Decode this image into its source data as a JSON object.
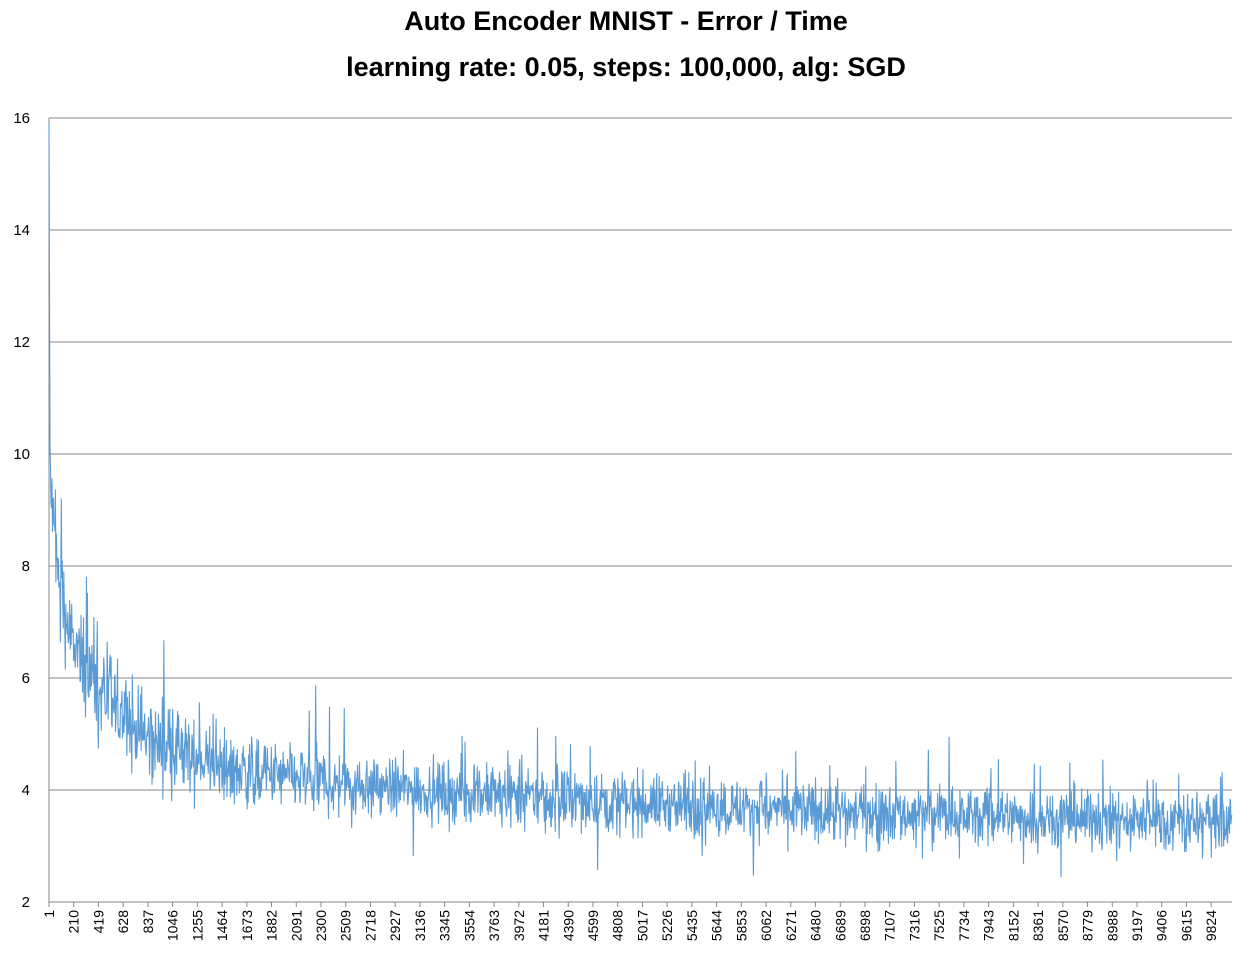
{
  "chart_data": {
    "type": "line",
    "title": "Auto Encoder MNIST - Error / Time",
    "subtitle": "learning rate: 0.05, steps: 100,000, alg: SGD",
    "xlabel": "",
    "ylabel": "",
    "ylim": [
      2,
      16
    ],
    "y_ticks": [
      2,
      4,
      6,
      8,
      10,
      12,
      14,
      16
    ],
    "x_range": [
      1,
      10000
    ],
    "x_ticks": [
      1,
      210,
      419,
      628,
      837,
      1046,
      1255,
      1464,
      1673,
      1882,
      2091,
      2300,
      2509,
      2718,
      2927,
      3136,
      3345,
      3554,
      3763,
      3972,
      4181,
      4390,
      4599,
      4808,
      5017,
      5226,
      5435,
      5644,
      5853,
      6062,
      6271,
      6480,
      6689,
      6898,
      7107,
      7316,
      7525,
      7734,
      7943,
      8152,
      8361,
      8570,
      8779,
      8988,
      9197,
      9406,
      9615,
      9824
    ],
    "grid": {
      "horizontal": true,
      "vertical": false
    },
    "legend": "none",
    "series": [
      {
        "color": "#5b9bd5",
        "x": [
          1,
          10,
          30,
          60,
          100,
          150,
          210,
          300,
          419,
          520,
          628,
          730,
          837,
          940,
          1046,
          1150,
          1255,
          1360,
          1464,
          1570,
          1673,
          1780,
          1882,
          2091,
          2300,
          2509,
          2718,
          2927,
          3136,
          3345,
          3554,
          3763,
          3972,
          4181,
          4390,
          4599,
          4808,
          5017,
          5226,
          5435,
          5644,
          5853,
          6062,
          6271,
          6480,
          6689,
          6898,
          7107,
          7316,
          7525,
          7734,
          7943,
          8152,
          8361,
          8570,
          8779,
          8988,
          9197,
          9406,
          9615,
          9824,
          10000
        ],
        "trend": [
          15.9,
          9.6,
          8.9,
          8.2,
          7.6,
          7.0,
          6.55,
          6.15,
          5.85,
          5.55,
          5.3,
          5.1,
          4.95,
          4.82,
          4.72,
          4.62,
          4.55,
          4.48,
          4.42,
          4.37,
          4.33,
          4.29,
          4.26,
          4.2,
          4.15,
          4.11,
          4.07,
          4.03,
          4.0,
          3.97,
          3.94,
          3.91,
          3.88,
          3.85,
          3.82,
          3.8,
          3.78,
          3.76,
          3.74,
          3.72,
          3.7,
          3.68,
          3.66,
          3.64,
          3.62,
          3.6,
          3.59,
          3.58,
          3.57,
          3.56,
          3.55,
          3.54,
          3.53,
          3.52,
          3.51,
          3.5,
          3.49,
          3.48,
          3.47,
          3.46,
          3.45,
          3.45
        ],
        "spread": [
          0.0,
          0.7,
          0.75,
          0.8,
          0.8,
          0.8,
          0.8,
          0.8,
          0.8,
          0.78,
          0.76,
          0.74,
          0.72,
          0.7,
          0.68,
          0.66,
          0.64,
          0.62,
          0.6,
          0.6,
          0.58,
          0.58,
          0.56,
          0.55,
          0.54,
          0.53,
          0.52,
          0.52,
          0.51,
          0.5,
          0.5,
          0.5,
          0.5,
          0.5,
          0.5,
          0.5,
          0.5,
          0.5,
          0.5,
          0.5,
          0.5,
          0.5,
          0.5,
          0.5,
          0.5,
          0.5,
          0.5,
          0.5,
          0.5,
          0.5,
          0.5,
          0.5,
          0.5,
          0.5,
          0.5,
          0.5,
          0.5,
          0.5,
          0.5,
          0.5,
          0.5,
          0.5
        ]
      }
    ]
  }
}
